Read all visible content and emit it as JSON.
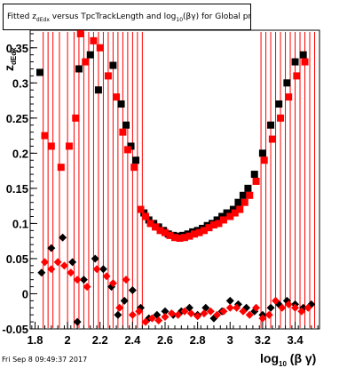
{
  "chart_data": {
    "type": "scatter",
    "title_parts": {
      "pre": "Fitted  z",
      "sub1": "dEdx",
      "mid": "  versus TpcTrackLength and log",
      "sub2": "10",
      "post": "(βγ) for Global proton"
    },
    "x_label_parts": {
      "pre": "log",
      "sub": "10",
      "post": " (β γ)"
    },
    "y_label": "z_dEdx",
    "y_label_display": "z",
    "y_label_sub": "dEdx",
    "xlim": [
      1.77,
      3.55
    ],
    "ylim": [
      -0.05,
      0.375
    ],
    "x_ticks": [
      "1.8",
      "2",
      "2.2",
      "2.4",
      "2.6",
      "2.8",
      "3",
      "3.2",
      "3.4"
    ],
    "y_ticks": [
      "-0.05",
      "0",
      "0.05",
      "0.1",
      "0.15",
      "0.2",
      "0.25",
      "0.3",
      "0.35"
    ],
    "grid": false,
    "series": [
      {
        "color": "#000000",
        "marker": "square",
        "points": [
          [
            1.83,
            0.315
          ],
          [
            2.07,
            0.32
          ],
          [
            2.14,
            0.34
          ],
          [
            2.19,
            0.29
          ],
          [
            2.28,
            0.325
          ],
          [
            2.33,
            0.27
          ],
          [
            2.36,
            0.24
          ],
          [
            2.39,
            0.21
          ],
          [
            2.42,
            0.19
          ],
          [
            2.47,
            0.115
          ],
          [
            2.5,
            0.105
          ],
          [
            2.53,
            0.1
          ],
          [
            2.56,
            0.095
          ],
          [
            2.59,
            0.09
          ],
          [
            2.62,
            0.085
          ],
          [
            2.65,
            0.083
          ],
          [
            2.68,
            0.082
          ],
          [
            2.71,
            0.083
          ],
          [
            2.74,
            0.085
          ],
          [
            2.77,
            0.088
          ],
          [
            2.8,
            0.09
          ],
          [
            2.83,
            0.093
          ],
          [
            2.86,
            0.097
          ],
          [
            2.89,
            0.1
          ],
          [
            2.92,
            0.105
          ],
          [
            2.95,
            0.11
          ],
          [
            2.98,
            0.115
          ],
          [
            3.02,
            0.12
          ],
          [
            3.05,
            0.13
          ],
          [
            3.08,
            0.14
          ],
          [
            3.11,
            0.15
          ],
          [
            3.15,
            0.17
          ],
          [
            3.2,
            0.2
          ],
          [
            3.25,
            0.24
          ],
          [
            3.3,
            0.27
          ],
          [
            3.35,
            0.3
          ],
          [
            3.4,
            0.33
          ],
          [
            3.45,
            0.34
          ]
        ]
      },
      {
        "color": "#ff0000",
        "marker": "square",
        "points": [
          [
            1.86,
            0.225
          ],
          [
            1.9,
            0.21
          ],
          [
            1.96,
            0.18
          ],
          [
            2.01,
            0.21
          ],
          [
            2.05,
            0.25
          ],
          [
            2.08,
            0.37
          ],
          [
            2.11,
            0.33
          ],
          [
            2.16,
            0.36
          ],
          [
            2.2,
            0.35
          ],
          [
            2.25,
            0.31
          ],
          [
            2.3,
            0.28
          ],
          [
            2.34,
            0.23
          ],
          [
            2.37,
            0.205
          ],
          [
            2.41,
            0.18
          ],
          [
            2.45,
            0.12
          ],
          [
            2.48,
            0.11
          ],
          [
            2.51,
            0.1
          ],
          [
            2.54,
            0.095
          ],
          [
            2.57,
            0.09
          ],
          [
            2.6,
            0.087
          ],
          [
            2.63,
            0.083
          ],
          [
            2.66,
            0.08
          ],
          [
            2.69,
            0.079
          ],
          [
            2.72,
            0.08
          ],
          [
            2.75,
            0.082
          ],
          [
            2.78,
            0.085
          ],
          [
            2.81,
            0.087
          ],
          [
            2.84,
            0.09
          ],
          [
            2.87,
            0.094
          ],
          [
            2.9,
            0.098
          ],
          [
            2.93,
            0.1
          ],
          [
            2.96,
            0.105
          ],
          [
            3.0,
            0.11
          ],
          [
            3.03,
            0.115
          ],
          [
            3.06,
            0.12
          ],
          [
            3.09,
            0.13
          ],
          [
            3.12,
            0.14
          ],
          [
            3.16,
            0.16
          ],
          [
            3.21,
            0.19
          ],
          [
            3.26,
            0.22
          ],
          [
            3.31,
            0.25
          ],
          [
            3.36,
            0.28
          ],
          [
            3.41,
            0.31
          ],
          [
            3.46,
            0.33
          ]
        ]
      },
      {
        "color": "#000000",
        "marker": "diamond",
        "points": [
          [
            1.84,
            0.03
          ],
          [
            1.9,
            0.065
          ],
          [
            1.97,
            0.08
          ],
          [
            2.03,
            0.045
          ],
          [
            2.06,
            -0.04
          ],
          [
            2.1,
            0.02
          ],
          [
            2.17,
            0.05
          ],
          [
            2.22,
            0.035
          ],
          [
            2.27,
            0.01
          ],
          [
            2.31,
            -0.03
          ],
          [
            2.35,
            -0.01
          ],
          [
            2.4,
            0.005
          ],
          [
            2.45,
            -0.02
          ],
          [
            2.5,
            -0.035
          ],
          [
            2.55,
            -0.03
          ],
          [
            2.6,
            -0.025
          ],
          [
            2.65,
            -0.03
          ],
          [
            2.7,
            -0.025
          ],
          [
            2.75,
            -0.02
          ],
          [
            2.8,
            -0.03
          ],
          [
            2.85,
            -0.02
          ],
          [
            2.9,
            -0.035
          ],
          [
            2.95,
            -0.025
          ],
          [
            3.0,
            -0.01
          ],
          [
            3.05,
            -0.015
          ],
          [
            3.1,
            -0.02
          ],
          [
            3.15,
            -0.025
          ],
          [
            3.2,
            -0.03
          ],
          [
            3.25,
            -0.02
          ],
          [
            3.3,
            -0.015
          ],
          [
            3.35,
            -0.01
          ],
          [
            3.4,
            -0.015
          ],
          [
            3.45,
            -0.02
          ],
          [
            3.5,
            -0.015
          ]
        ]
      },
      {
        "color": "#ff0000",
        "marker": "diamond",
        "points": [
          [
            1.86,
            0.045
          ],
          [
            1.9,
            0.035
          ],
          [
            1.94,
            0.045
          ],
          [
            1.98,
            0.04
          ],
          [
            2.02,
            0.03
          ],
          [
            2.06,
            0.02
          ],
          [
            2.12,
            0.01
          ],
          [
            2.18,
            0.035
          ],
          [
            2.24,
            0.025
          ],
          [
            2.28,
            0.015
          ],
          [
            2.32,
            -0.02
          ],
          [
            2.36,
            0.02
          ],
          [
            2.4,
            -0.03
          ],
          [
            2.44,
            -0.025
          ],
          [
            2.48,
            -0.04
          ],
          [
            2.52,
            -0.035
          ],
          [
            2.56,
            -0.038
          ],
          [
            2.6,
            -0.033
          ],
          [
            2.64,
            -0.028
          ],
          [
            2.68,
            -0.03
          ],
          [
            2.72,
            -0.025
          ],
          [
            2.76,
            -0.028
          ],
          [
            2.8,
            -0.032
          ],
          [
            2.84,
            -0.028
          ],
          [
            2.88,
            -0.025
          ],
          [
            2.92,
            -0.03
          ],
          [
            2.96,
            -0.025
          ],
          [
            3.0,
            -0.02
          ],
          [
            3.04,
            -0.02
          ],
          [
            3.08,
            -0.025
          ],
          [
            3.12,
            -0.03
          ],
          [
            3.16,
            -0.02
          ],
          [
            3.2,
            -0.035
          ],
          [
            3.24,
            -0.03
          ],
          [
            3.28,
            -0.01
          ],
          [
            3.32,
            -0.02
          ],
          [
            3.36,
            -0.015
          ],
          [
            3.4,
            -0.02
          ],
          [
            3.44,
            -0.025
          ],
          [
            3.48,
            -0.02
          ]
        ]
      }
    ],
    "vertical_error_bars_x": [
      1.85,
      1.88,
      1.91,
      1.95,
      2.0,
      2.04,
      2.07,
      2.1,
      2.13,
      2.16,
      2.19,
      2.22,
      2.25,
      2.28,
      2.31,
      2.34,
      2.37,
      2.4,
      2.43,
      2.46,
      3.19,
      3.22,
      3.25,
      3.28,
      3.31,
      3.34,
      3.37,
      3.4,
      3.43,
      3.46,
      3.49,
      3.52
    ]
  },
  "footer": {
    "date": "Fri Sep  8 09:49:37 2017"
  }
}
